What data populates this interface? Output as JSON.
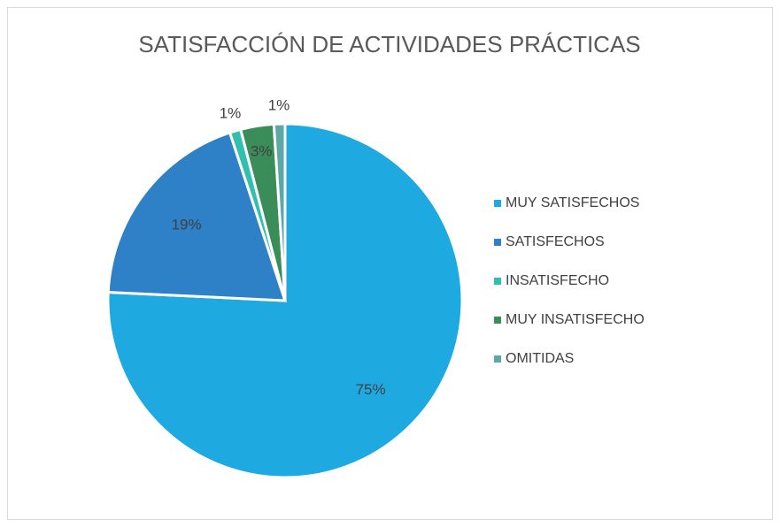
{
  "chart_data": {
    "type": "pie",
    "title": "SATISFACCIÓN DE ACTIVIDADES PRÁCTICAS",
    "categories": [
      "MUY SATISFECHOS",
      "SATISFECHOS",
      "INSATISFECHO",
      "MUY INSATISFECHO",
      "OMITIDAS"
    ],
    "values": [
      75,
      19,
      1,
      3,
      1
    ],
    "value_labels": [
      "75%",
      "19%",
      "1%",
      "3%",
      "1%"
    ],
    "colors": [
      "#1eaae1",
      "#2e81c6",
      "#33bfae",
      "#3a8c58",
      "#5ea7a7"
    ],
    "legend": "right"
  }
}
